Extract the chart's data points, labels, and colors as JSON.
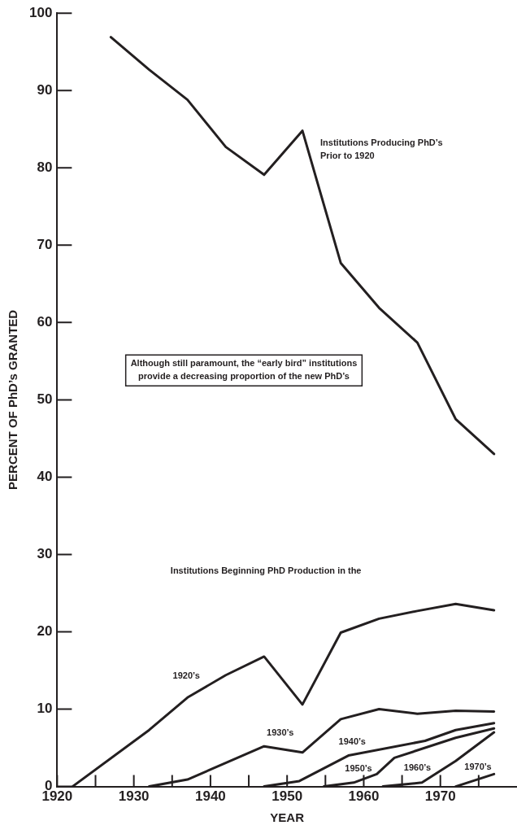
{
  "chart_data": {
    "type": "line",
    "xlabel": "YEAR",
    "ylabel": "PERCENT OF PhD’s GRANTED",
    "xlim": [
      1920,
      1980
    ],
    "xticks": [
      1920,
      {
        "value": 1925,
        "label": null
      },
      1930,
      {
        "value": 1935,
        "label": null
      },
      1940,
      {
        "value": 1945,
        "label": null
      },
      1950,
      {
        "value": 1955,
        "label": null
      },
      1960,
      {
        "value": 1965,
        "label": null
      },
      1970,
      {
        "value": 1975,
        "label": null
      }
    ],
    "ylim": [
      0,
      100
    ],
    "yticks": [
      0,
      10,
      20,
      30,
      40,
      50,
      60,
      70,
      80,
      90,
      100
    ],
    "grid": false,
    "legend": false,
    "marker": "none",
    "line_style": "solid",
    "series": [
      {
        "name": "Institutions Producing PhD’s\nPrior to 1920",
        "color": "#231f20",
        "x": [
          1927,
          1932,
          1937,
          1942,
          1947,
          1952,
          1957,
          1962,
          1967,
          1972,
          1977
        ],
        "values": [
          96.9,
          92.7,
          88.8,
          82.7,
          79.1,
          84.8,
          67.7,
          61.9,
          57.4,
          47.5,
          43.0
        ]
      },
      {
        "name": "1920’s",
        "color": "#231f20",
        "x": [
          1922,
          1932,
          1937,
          1942,
          1947,
          1952,
          1957,
          1962,
          1967,
          1972,
          1977
        ],
        "values": [
          0,
          7.3,
          11.5,
          14.4,
          16.8,
          10.6,
          19.9,
          21.7,
          22.7,
          23.6,
          22.8
        ]
      },
      {
        "name": "1930’s",
        "color": "#231f20",
        "x": [
          1932,
          1937,
          1947,
          1952,
          1957,
          1962,
          1967,
          1972,
          1977
        ],
        "values": [
          0,
          0.9,
          5.2,
          4.4,
          8.7,
          10.0,
          9.4,
          9.8,
          9.7
        ]
      },
      {
        "name": "1940’s",
        "color": "#231f20",
        "x": [
          1947,
          1951.6,
          1958,
          1968,
          1972,
          1977
        ],
        "values": [
          0,
          0.7,
          4.0,
          5.9,
          7.3,
          8.2
        ]
      },
      {
        "name": "1950’s",
        "color": "#231f20",
        "x": [
          1954.8,
          1958.7,
          1961.7,
          1964,
          1972,
          1977
        ],
        "values": [
          0,
          0.5,
          1.6,
          3.7,
          6.3,
          7.5
        ]
      },
      {
        "name": "1960’s",
        "color": "#231f20",
        "x": [
          1962.5,
          1967.6,
          1972,
          1977
        ],
        "values": [
          0,
          0.5,
          3.3,
          7.0
        ]
      },
      {
        "name": "1970’s",
        "color": "#231f20",
        "x": [
          1972,
          1977
        ],
        "values": [
          0,
          1.6
        ]
      }
    ],
    "annotations": [
      "Although still paramount, the “early bird” institutions\nprovide a decreasing proportion of the new PhD’s",
      "Institutions Beginning PhD Production in the"
    ]
  }
}
